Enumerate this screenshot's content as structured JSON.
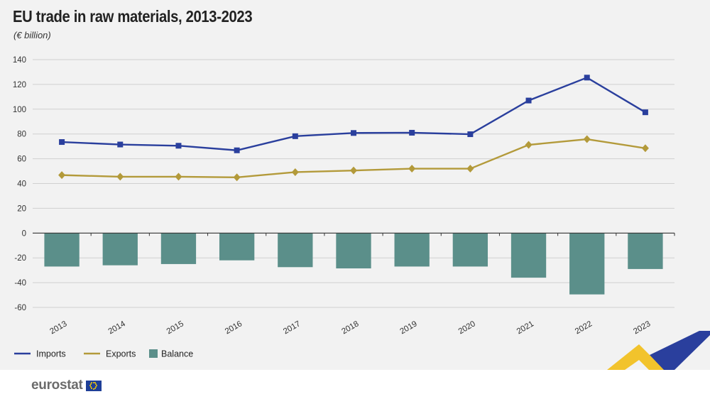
{
  "title": "EU trade in raw materials, 2013-2023",
  "subtitle": "(€ billion)",
  "logo": {
    "text": "eurostat",
    "flag_icon": "eu-flag-icon"
  },
  "colors": {
    "imports": "#2a3f9d",
    "exports": "#b39a3a",
    "balance": "#5b8f8a",
    "grid": "#d0d0d0",
    "axis": "#333333",
    "deco_yellow": "#f2c32c",
    "deco_blue": "#2a3f9d"
  },
  "chart_data": {
    "type": "line",
    "x": [
      "2013",
      "2014",
      "2015",
      "2016",
      "2017",
      "2018",
      "2019",
      "2020",
      "2021",
      "2022",
      "2023"
    ],
    "ylim": [
      -60,
      140
    ],
    "yticks": [
      "140",
      "120",
      "100",
      "80",
      "60",
      "40",
      "20",
      "0",
      "-20",
      "-40",
      "-60"
    ],
    "grid": true,
    "legend_position": "bottom-left",
    "series": [
      {
        "name": "Imports",
        "type": "line",
        "marker": "square",
        "values": [
          73.5,
          71.5,
          70.5,
          66.8,
          78.2,
          80.8,
          81.0,
          79.8,
          107.0,
          125.5,
          97.5
        ]
      },
      {
        "name": "Exports",
        "type": "line",
        "marker": "diamond",
        "values": [
          46.8,
          45.5,
          45.5,
          45.0,
          49.2,
          50.5,
          52.0,
          52.0,
          71.2,
          75.8,
          68.5
        ]
      },
      {
        "name": "Balance",
        "type": "bar",
        "values": [
          -27.0,
          -26.0,
          -25.0,
          -22.0,
          -27.5,
          -28.5,
          -27.0,
          -27.0,
          -36.0,
          -49.5,
          -29.0
        ]
      }
    ]
  }
}
